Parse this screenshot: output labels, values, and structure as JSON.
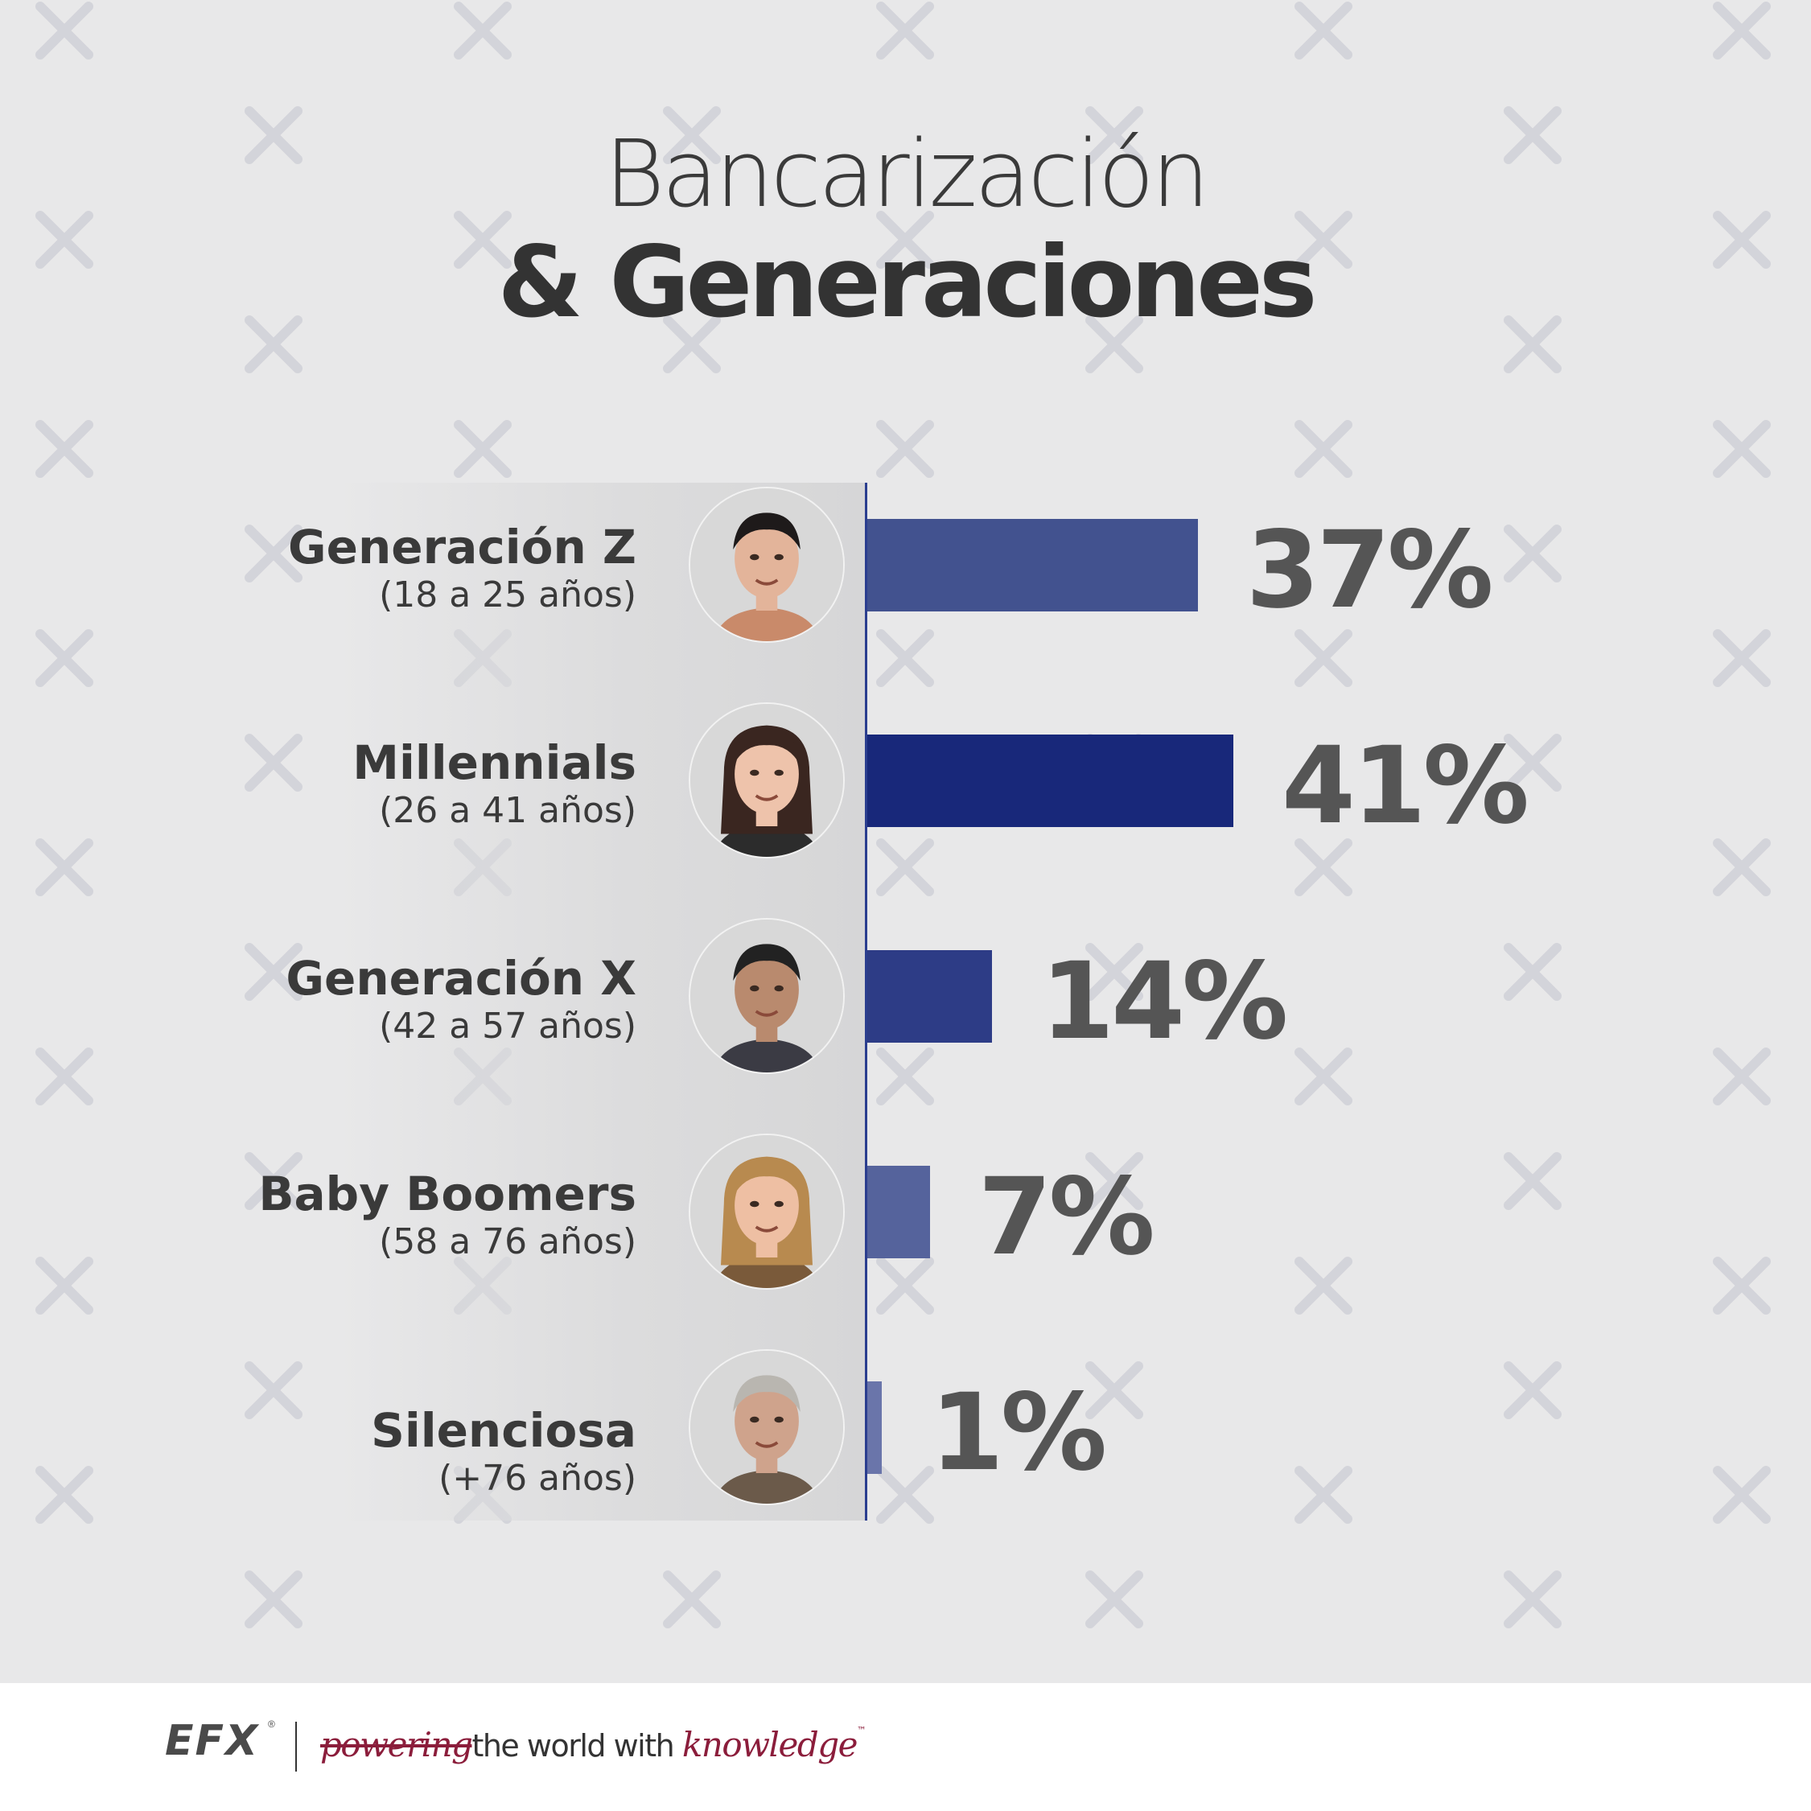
{
  "title": {
    "line1": "Bancarización",
    "line2": "& Generaciones"
  },
  "chart_data": {
    "type": "bar",
    "orientation": "horizontal",
    "categories": [
      "Generación Z",
      "Millennials",
      "Generación X",
      "Baby Boomers",
      "Silenciosa"
    ],
    "age_ranges": [
      "(18 a 25 años)",
      "(26 a 41 años)",
      "(42 a 57 años)",
      "(58 a 76 años)",
      "(+76 años)"
    ],
    "values": [
      37,
      41,
      14,
      7,
      1
    ],
    "value_labels": [
      "37%",
      "41%",
      "14%",
      "7%",
      "1%"
    ],
    "bar_colors": [
      "#42528f",
      "#18287a",
      "#2d3c86",
      "#55639c",
      "#6a75aa"
    ],
    "xlim": [
      0,
      41
    ],
    "grid": false,
    "legend": "none"
  },
  "avatars": [
    "young-man-avatar",
    "young-woman-avatar",
    "middle-aged-man-avatar",
    "older-woman-avatar",
    "elderly-man-avatar"
  ],
  "footer": {
    "brand": "EFX",
    "registered": "®",
    "tagline_script1": "powering",
    "tagline_plain": "the world with",
    "tagline_script2": "knowledge",
    "trademark": "™"
  },
  "colors": {
    "background": "#e8e8e9",
    "axis": "#2b3e8f",
    "value_text": "#555555",
    "brand_accent": "#8b1d3b"
  }
}
